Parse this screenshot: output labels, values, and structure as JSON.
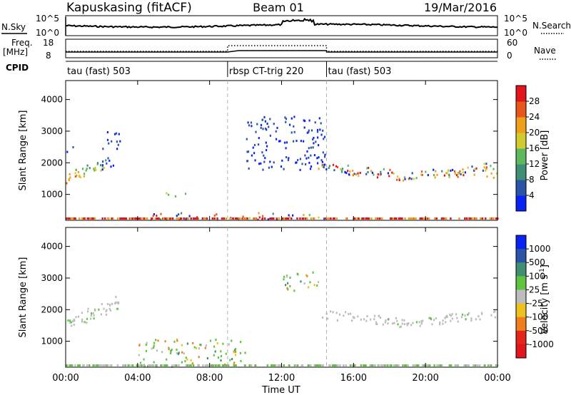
{
  "header": {
    "station": "Kapuskasing (fitACF)",
    "beam": "Beam 01",
    "date": "19/Mar/2016"
  },
  "top_panel": {
    "left_label": "N.Sky",
    "right_label": "N.Search",
    "left_ticks": [
      "10^5",
      "10^0"
    ],
    "right_ticks": [
      "10^5",
      "10^0"
    ]
  },
  "freq_panel": {
    "left_label_1": "Freq.",
    "left_label_2": "[MHz]",
    "left_ticks": [
      "18",
      "8"
    ],
    "right_label": "Nave",
    "right_ticks": [
      "60",
      "0"
    ]
  },
  "cpid_panel": {
    "label": "CPID",
    "segments": [
      {
        "name": "tau (fast) 503",
        "start": 0,
        "end": 9
      },
      {
        "name": "rbsp CT-trig 220",
        "start": 9,
        "end": 14.5
      },
      {
        "name": "tau (fast) 503",
        "start": 14.5,
        "end": 24
      }
    ]
  },
  "chart_data": [
    {
      "type": "heatmap",
      "name": "power",
      "ylabel": "Slant Range [km]",
      "yticks": [
        "1000",
        "2000",
        "3000",
        "4000"
      ],
      "ylim": [
        180,
        4600
      ],
      "colorbar_label": "Power [dB]",
      "colorbar_ticks": [
        "4",
        "8",
        "12",
        "16",
        "20",
        "24",
        "28"
      ],
      "colors": [
        "#0a23f5",
        "#2a54a8",
        "#3f8f74",
        "#5eb85e",
        "#d2cb2d",
        "#ee9f1c",
        "#e8561c",
        "#e3151c"
      ],
      "features": [
        {
          "t": [
            0.0,
            2.2
          ],
          "r": [
            1300,
            2200
          ],
          "level": "high"
        },
        {
          "t": [
            0.0,
            0.5
          ],
          "r": [
            2350,
            2550
          ],
          "level": "low"
        },
        {
          "t": [
            2.0,
            3.0
          ],
          "r": [
            1800,
            3000
          ],
          "level": "low"
        },
        {
          "t": [
            5.5,
            7.0
          ],
          "r": [
            950,
            1100
          ],
          "level": "mid"
        },
        {
          "t": [
            4.0,
            14.5
          ],
          "r": [
            200,
            450
          ],
          "level": "mixed"
        },
        {
          "t": [
            10.0,
            14.5
          ],
          "r": [
            1800,
            3500
          ],
          "level": "low"
        },
        {
          "t": [
            14.0,
            24.0
          ],
          "r": [
            1400,
            2000
          ],
          "level": "mixed"
        },
        {
          "t": [
            21.0,
            24.0
          ],
          "r": [
            1550,
            1850
          ],
          "level": "high"
        }
      ]
    },
    {
      "type": "heatmap",
      "name": "velocity",
      "ylabel": "Slant Range [km]",
      "yticks": [
        "1000",
        "2000",
        "3000",
        "4000"
      ],
      "ylim": [
        180,
        4600
      ],
      "colorbar_label": "Velocity [m s",
      "colorbar_label_sup": "-1",
      "colorbar_label_end": "]",
      "colorbar_ticks": [
        "1000",
        "500",
        "100",
        "25",
        "-25",
        "-100",
        "-500",
        "-1000"
      ],
      "colors": [
        "#0a23f5",
        "#2a54a8",
        "#3f8f74",
        "#5ec43e",
        "#bdbdbd",
        "#eec21c",
        "#ee7f1c",
        "#e3251c",
        "#e3151c"
      ],
      "features": [
        {
          "t": [
            0.0,
            3.0
          ],
          "r": [
            1300,
            2300
          ],
          "level": "ground"
        },
        {
          "t": [
            4.0,
            10.0
          ],
          "r": [
            200,
            1100
          ],
          "level": "positive"
        },
        {
          "t": [
            12.0,
            14.0
          ],
          "r": [
            2600,
            3300
          ],
          "level": "positive"
        },
        {
          "t": [
            14.0,
            24.0
          ],
          "r": [
            1400,
            2000
          ],
          "level": "ground"
        }
      ]
    }
  ],
  "time_axis": {
    "xlabel": "Time UT",
    "xlim": [
      0,
      24
    ],
    "ticks": [
      "00:00",
      "04:00",
      "08:00",
      "12:00",
      "16:00",
      "20:00",
      "00:00"
    ],
    "tick_hours": [
      0,
      4,
      8,
      12,
      16,
      20,
      24
    ],
    "mode_change_hours": [
      9,
      14.5
    ]
  }
}
